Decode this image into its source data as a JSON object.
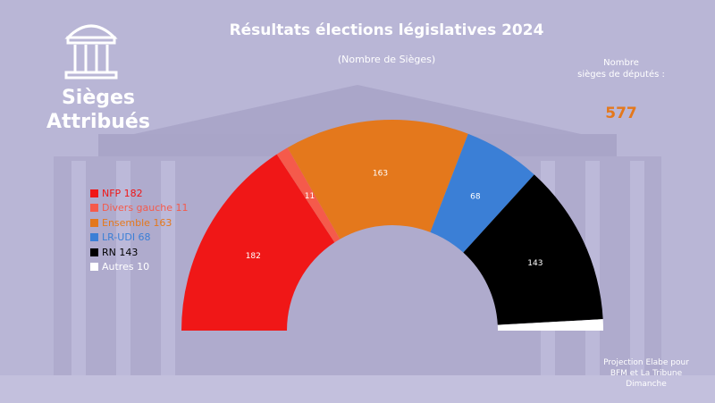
{
  "header": {
    "title": "Résultats élections législatives 2024",
    "subtitle": "(Nombre de Sièges)"
  },
  "brand": {
    "line1": "Sièges",
    "line2": "Attribués",
    "icon": "columns-temple-icon"
  },
  "total": {
    "label_line1": "Nombre",
    "label_line2": "sièges de députés :",
    "value": "577"
  },
  "legend": [
    {
      "text": "NFP 182",
      "color": "#f01717"
    },
    {
      "text": "Divers gauche 11",
      "color": "#f55a4b"
    },
    {
      "text": "Ensemble 163",
      "color": "#e4781c"
    },
    {
      "text": "LR-UDI 68",
      "color": "#3b7fd6"
    },
    {
      "text": "RN 143",
      "color": "#000000"
    },
    {
      "text": "Autres 10",
      "color": "#ffffff"
    }
  ],
  "source": {
    "line1": "Projection Elabe pour",
    "line2": "BFM et La Tribune",
    "line3": "Dimanche"
  },
  "chart_data": {
    "type": "pie",
    "variant": "semicircle-parliament",
    "title": "Résultats élections législatives 2024",
    "subtitle": "(Nombre de Sièges)",
    "total": 577,
    "series": [
      {
        "name": "NFP",
        "value": 182,
        "color": "#f01717",
        "label": "182"
      },
      {
        "name": "Divers gauche",
        "value": 11,
        "color": "#f55a4b",
        "label": "11"
      },
      {
        "name": "Ensemble",
        "value": 163,
        "color": "#e4781c",
        "label": "163"
      },
      {
        "name": "LR-UDI",
        "value": 68,
        "color": "#3b7fd6",
        "label": "68"
      },
      {
        "name": "RN",
        "value": 143,
        "color": "#000000",
        "label": "143"
      },
      {
        "name": "Autres",
        "value": 10,
        "color": "#ffffff",
        "label": ""
      }
    ]
  }
}
